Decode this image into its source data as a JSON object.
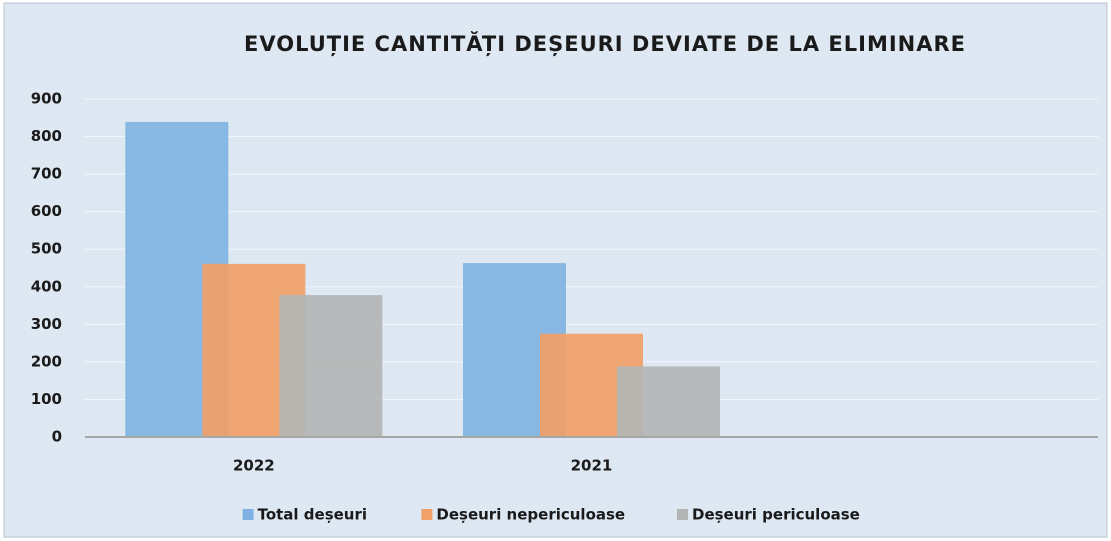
{
  "chart_data": {
    "type": "bar",
    "title": "EVOLUȚIE CANTITĂȚI DEȘEURI DEVIATE DE LA ELIMINARE",
    "categories": [
      "2022",
      "2021",
      null
    ],
    "series": [
      {
        "name": "Total deșeuri",
        "color": "#7fb2e2",
        "values": [
          839,
          463,
          null
        ]
      },
      {
        "name": "Deșeuri nepericuloase",
        "color": "#f0a068",
        "values": [
          461,
          275,
          null
        ]
      },
      {
        "name": "Deșeuri periculoase",
        "color": "#b3b5b5",
        "values": [
          378,
          188,
          null
        ]
      }
    ],
    "ylim": [
      0,
      900
    ],
    "yticks": [
      0,
      100,
      200,
      300,
      400,
      500,
      600,
      700,
      800,
      900
    ],
    "grid": true,
    "legend": "bottom"
  }
}
